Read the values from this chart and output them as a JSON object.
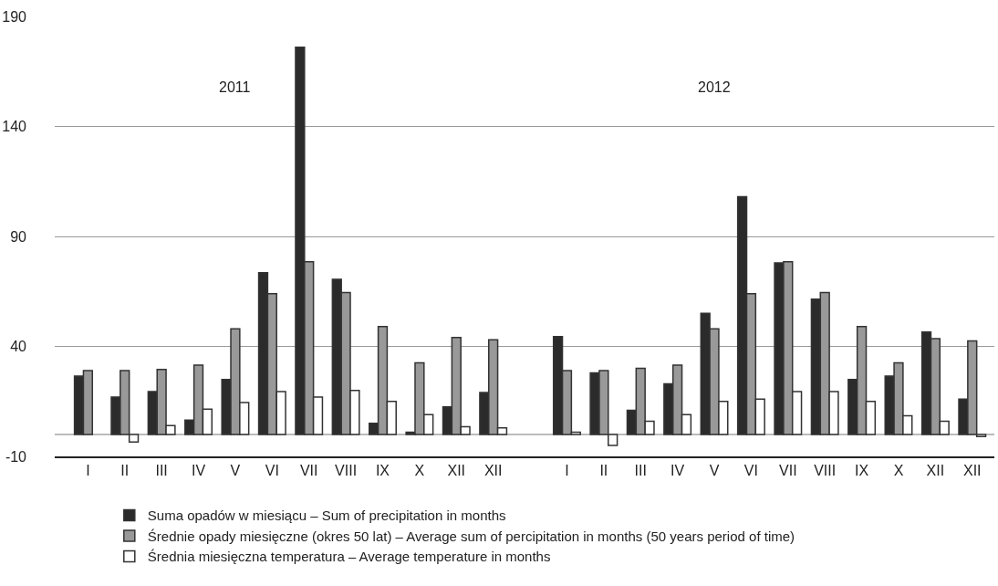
{
  "chart_data": {
    "type": "bar",
    "categories": [
      "I",
      "II",
      "III",
      "IV",
      "V",
      "VI",
      "VII",
      "VIII",
      "IX",
      "X",
      "XII",
      "XII",
      null,
      "I",
      "II",
      "III",
      "IV",
      "V",
      "VI",
      "VII",
      "VIII",
      "IX",
      "X",
      "XII",
      "XII"
    ],
    "series": [
      {
        "name": "Suma opadów w miesiącu – Sum of precipitation in months",
        "color": "#2b2b2b",
        "values": [
          26.5,
          17,
          19.5,
          6.5,
          25,
          73.5,
          176,
          70.5,
          5,
          1,
          12.5,
          19,
          null,
          44.5,
          28,
          11,
          23,
          55,
          108,
          78,
          61.5,
          25,
          26.5,
          46.5,
          16
        ]
      },
      {
        "name": "Średnie opady miesięczne (okres 50 lat) – Average sum of percipitation in months (50 years period of time)",
        "color": "#999999",
        "values": [
          29,
          29,
          29.5,
          31.5,
          48,
          64,
          78.5,
          64.5,
          49,
          32.5,
          44,
          43,
          null,
          29,
          29,
          30,
          31.5,
          48,
          64,
          78.5,
          64.5,
          49,
          32.5,
          43.5,
          42.5
        ]
      },
      {
        "name": "Średnia miesięczna temperatura – Average temperature in months",
        "color": "#ffffff",
        "values": [
          null,
          -3.5,
          4,
          11.5,
          14.5,
          19.5,
          17,
          20,
          15,
          9,
          3.5,
          3,
          null,
          1,
          -5,
          6,
          9,
          15,
          16,
          19.5,
          19.5,
          15,
          8.5,
          6,
          -1
        ]
      }
    ],
    "annotations": [
      "2011",
      "2012"
    ],
    "ylim": [
      -10,
      190
    ],
    "yticks": [
      -10,
      40,
      90,
      140,
      190
    ],
    "ref_lines": [
      {
        "axis": "y",
        "value": 0,
        "color": "#bbbbbb"
      }
    ],
    "grid": "y",
    "legend": "bottom"
  }
}
